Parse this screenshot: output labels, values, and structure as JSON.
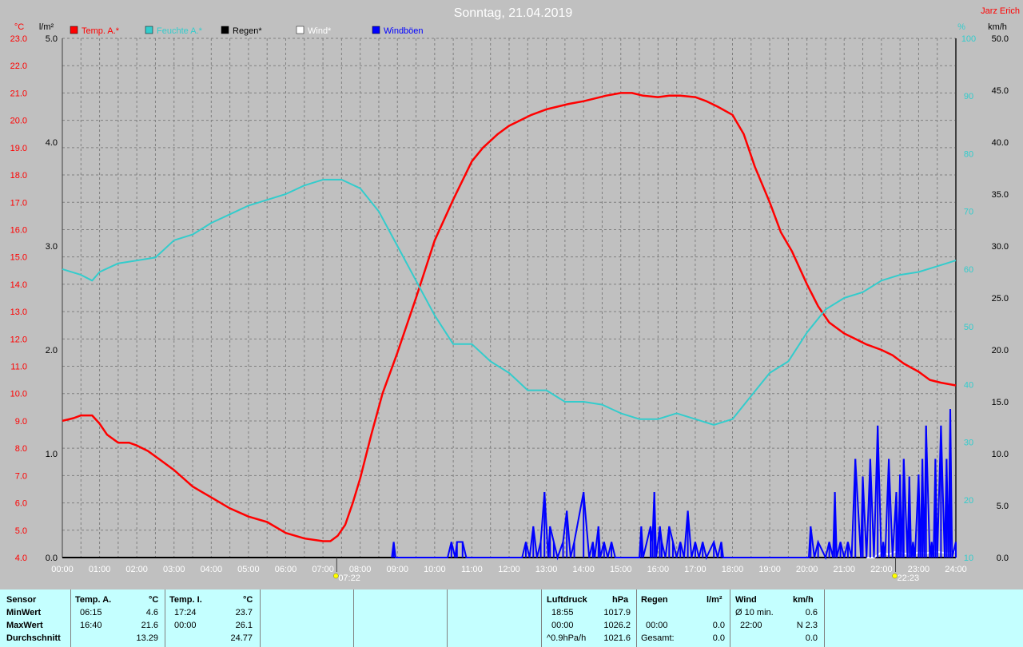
{
  "title": "Sonntag, 21.04.2019",
  "author": "Jarz Erich",
  "colors": {
    "background": "#c0c0c0",
    "grid": "#808080",
    "temperature": "#ff0000",
    "humidity": "#33cccc",
    "rain": "#000000",
    "wind": "#ffffff",
    "gusts": "#0000ff",
    "panel": "#c4ffff"
  },
  "chart_data": {
    "type": "line",
    "title": "Sonntag, 21.04.2019",
    "legend": [
      "Temp. A.*",
      "Feuchte A.*",
      "Regen*",
      "Wind*",
      "Windböen"
    ],
    "legend_placement": "top-left",
    "grid": true,
    "x_labels": [
      "00:00",
      "01:00",
      "02:00",
      "03:00",
      "04:00",
      "05:00",
      "06:00",
      "07:00",
      "08:00",
      "09:00",
      "10:00",
      "11:00",
      "12:00",
      "13:00",
      "14:00",
      "15:00",
      "16:00",
      "17:00",
      "18:00",
      "19:00",
      "20:00",
      "21:00",
      "22:00",
      "23:00",
      "24:00"
    ],
    "xlim": [
      0,
      24
    ],
    "axes": {
      "temp": {
        "unit": "°C",
        "min": 4,
        "max": 23,
        "ticks": [
          "4.0",
          "5.0",
          "6.0",
          "7.0",
          "8.0",
          "9.0",
          "10.0",
          "11.0",
          "12.0",
          "13.0",
          "14.0",
          "15.0",
          "16.0",
          "17.0",
          "18.0",
          "19.0",
          "20.0",
          "21.0",
          "22.0",
          "23.0"
        ]
      },
      "rain": {
        "unit": "l/m²",
        "min": 0,
        "max": 5,
        "ticks": [
          "0.0",
          "1.0",
          "2.0",
          "3.0",
          "4.0",
          "5.0"
        ]
      },
      "humidity": {
        "unit": "%",
        "min": 10,
        "max": 100,
        "ticks": [
          "10",
          "20",
          "30",
          "40",
          "50",
          "60",
          "70",
          "80",
          "90",
          "100"
        ]
      },
      "wind": {
        "unit": "km/h",
        "min": 0,
        "max": 50,
        "ticks": [
          "0.0",
          "5.0",
          "10.0",
          "15.0",
          "20.0",
          "25.0",
          "30.0",
          "35.0",
          "40.0",
          "45.0",
          "50.0"
        ]
      }
    },
    "sun_markers": [
      {
        "time": 7.37,
        "label": "07:22"
      },
      {
        "time": 22.38,
        "label": "22:23"
      }
    ],
    "series": [
      {
        "name": "Temp. A.*",
        "axis": "temp",
        "color": "#ff0000",
        "x": [
          0,
          0.3,
          0.5,
          0.8,
          1,
          1.2,
          1.5,
          1.8,
          2,
          2.3,
          2.6,
          3,
          3.5,
          4,
          4.5,
          5,
          5.5,
          6,
          6.5,
          7,
          7.2,
          7.4,
          7.6,
          7.8,
          8,
          8.3,
          8.6,
          9,
          9.5,
          10,
          10.5,
          11,
          11.3,
          11.7,
          12,
          12.3,
          12.6,
          13,
          13.3,
          13.6,
          14,
          14.3,
          14.6,
          15,
          15.3,
          15.6,
          16,
          16.3,
          16.6,
          17,
          17.3,
          17.6,
          18,
          18.3,
          18.6,
          19,
          19.3,
          19.6,
          20,
          20.3,
          20.6,
          21,
          21.3,
          21.6,
          22,
          22.3,
          22.6,
          23,
          23.3,
          23.6,
          24
        ],
        "y": [
          9.0,
          9.1,
          9.2,
          9.2,
          8.9,
          8.5,
          8.2,
          8.2,
          8.1,
          7.9,
          7.6,
          7.2,
          6.6,
          6.2,
          5.8,
          5.5,
          5.3,
          4.9,
          4.7,
          4.6,
          4.6,
          4.8,
          5.2,
          6.0,
          6.9,
          8.5,
          10.0,
          11.5,
          13.5,
          15.6,
          17.1,
          18.5,
          19.0,
          19.5,
          19.8,
          20.0,
          20.2,
          20.4,
          20.5,
          20.6,
          20.7,
          20.8,
          20.9,
          21.0,
          21.0,
          20.9,
          20.85,
          20.9,
          20.9,
          20.85,
          20.7,
          20.5,
          20.2,
          19.5,
          18.3,
          17.0,
          15.9,
          15.2,
          14.0,
          13.2,
          12.6,
          12.2,
          12.0,
          11.8,
          11.6,
          11.4,
          11.1,
          10.8,
          10.5,
          10.4,
          10.3
        ]
      },
      {
        "name": "Feuchte A.*",
        "axis": "humidity",
        "color": "#33cccc",
        "x": [
          0,
          0.5,
          0.8,
          1,
          1.5,
          2,
          2.5,
          3,
          3.5,
          4,
          4.5,
          5,
          5.5,
          6,
          6.5,
          7,
          7.5,
          8,
          8.5,
          9,
          9.5,
          10,
          10.5,
          11,
          11.5,
          12,
          12.5,
          13,
          13.5,
          14,
          14.5,
          15,
          15.5,
          16,
          16.5,
          17,
          17.5,
          18,
          18.5,
          19,
          19.5,
          20,
          20.5,
          21,
          21.5,
          22,
          22.5,
          23,
          23.5,
          24
        ],
        "y": [
          60,
          59,
          58,
          59.5,
          61,
          61.5,
          62,
          65,
          66,
          68,
          69.5,
          71,
          72,
          73,
          74.5,
          75.5,
          75.5,
          74,
          70,
          64,
          58,
          52,
          47,
          47,
          44,
          42,
          39,
          39,
          37,
          37,
          36.5,
          35,
          34,
          34,
          35,
          34,
          33,
          34,
          38,
          42,
          44,
          49,
          53,
          55,
          56,
          58,
          59,
          59.5,
          60.5,
          61.5
        ]
      },
      {
        "name": "Regen*",
        "axis": "rain",
        "color": "#000000",
        "x": [
          0,
          24
        ],
        "y": [
          0,
          0
        ]
      },
      {
        "name": "Wind*",
        "axis": "wind",
        "color": "#ffffff",
        "x": [
          21.6,
          21.8,
          22,
          22.2,
          22.4,
          22.6,
          22.8,
          23,
          23.2,
          23.4,
          23.6,
          23.8,
          24
        ],
        "y": [
          0,
          0,
          0.5,
          0.3,
          0.6,
          0.4,
          0.3,
          0.5,
          0.4,
          0.6,
          0.5,
          0.4,
          0.6
        ]
      },
      {
        "name": "Windböen",
        "axis": "wind",
        "color": "#0000ff",
        "x": [
          8.85,
          8.9,
          8.95,
          10.35,
          10.45,
          10.55,
          10.6,
          10.75,
          10.85,
          12.35,
          12.45,
          12.55,
          12.65,
          12.75,
          12.85,
          12.95,
          13.05,
          13.1,
          13.2,
          13.3,
          13.45,
          13.55,
          13.65,
          13.75,
          14.0,
          14.15,
          14.25,
          14.3,
          14.4,
          14.45,
          14.55,
          14.65,
          14.75,
          14.85,
          15.5,
          15.55,
          15.6,
          15.8,
          15.85,
          15.9,
          15.95,
          16.05,
          16.1,
          16.2,
          16.3,
          16.4,
          16.5,
          16.6,
          16.7,
          16.8,
          16.9,
          17.0,
          17.1,
          17.2,
          17.3,
          17.5,
          17.6,
          17.7,
          17.75,
          17.8,
          20.05,
          20.1,
          20.2,
          20.3,
          20.5,
          20.6,
          20.7,
          20.75,
          20.8,
          20.9,
          21.0,
          21.1,
          21.2,
          21.3,
          21.45,
          21.5,
          21.6,
          21.7,
          21.8,
          21.9,
          22.0,
          22.05,
          22.1,
          22.2,
          22.3,
          22.4,
          22.45,
          22.5,
          22.55,
          22.6,
          22.7,
          22.75,
          22.8,
          22.85,
          22.9,
          23.0,
          23.05,
          23.1,
          23.15,
          23.2,
          23.3,
          23.35,
          23.4,
          23.45,
          23.5,
          23.6,
          23.7,
          23.75,
          23.8,
          23.85,
          23.9,
          24.0
        ],
        "y": [
          0,
          1.5,
          0,
          0,
          1.5,
          0,
          1.5,
          1.5,
          0,
          0,
          1.5,
          0,
          3.0,
          0,
          1.5,
          6.3,
          0,
          3.0,
          1.5,
          0,
          1.5,
          4.5,
          0,
          1.5,
          6.3,
          0,
          1.5,
          0,
          3.0,
          0,
          1.5,
          0,
          1.5,
          0,
          0,
          3.0,
          0,
          3.0,
          1.5,
          6.3,
          0,
          3.0,
          1.5,
          0,
          3.0,
          1.5,
          0,
          1.5,
          0,
          4.5,
          0,
          1.5,
          0,
          1.5,
          0,
          1.5,
          0,
          1.5,
          0,
          0,
          0,
          3.0,
          0,
          1.5,
          0,
          1.5,
          0,
          6.3,
          0,
          1.5,
          0,
          1.5,
          0,
          9.5,
          0,
          7.8,
          0,
          9.5,
          0,
          12.7,
          0,
          1.5,
          0,
          9.5,
          0,
          6.3,
          0,
          8.0,
          0,
          9.5,
          0,
          7.8,
          0,
          1.5,
          0,
          8.0,
          0,
          9.5,
          0,
          12.7,
          0,
          1.5,
          0,
          9.5,
          0,
          12.7,
          0,
          9.5,
          0,
          14.3,
          0,
          1.5
        ]
      }
    ]
  },
  "stats": {
    "columns": [
      {
        "label": "Sensor",
        "unit": "",
        "rows": [
          "MinWert",
          "MaxWert",
          "Durchschnitt"
        ]
      },
      {
        "label": "Temp. A.",
        "unit": "°C",
        "times": [
          "06:15",
          "16:40",
          ""
        ],
        "values": [
          "4.6",
          "21.6",
          "13.29"
        ]
      },
      {
        "label": "Temp. I.",
        "unit": "°C",
        "times": [
          "17:24",
          "00:00",
          ""
        ],
        "values": [
          "23.7",
          "26.1",
          "24.77"
        ]
      },
      {
        "label": "Luftdruck",
        "unit": "hPa",
        "times": [
          "18:55",
          "00:00",
          "^0.9hPa/h"
        ],
        "values": [
          "1017.9",
          "1026.2",
          "1021.6"
        ]
      },
      {
        "label": "Regen",
        "unit": "l/m²",
        "times": [
          "",
          "00:00",
          "Gesamt:"
        ],
        "values": [
          "",
          "0.0",
          "0.0"
        ]
      },
      {
        "label": "Wind",
        "unit": "km/h",
        "times": [
          "Ø 10 min.",
          "22:00",
          ""
        ],
        "values": [
          "0.6",
          "N 2.3",
          "0.0"
        ]
      }
    ]
  }
}
